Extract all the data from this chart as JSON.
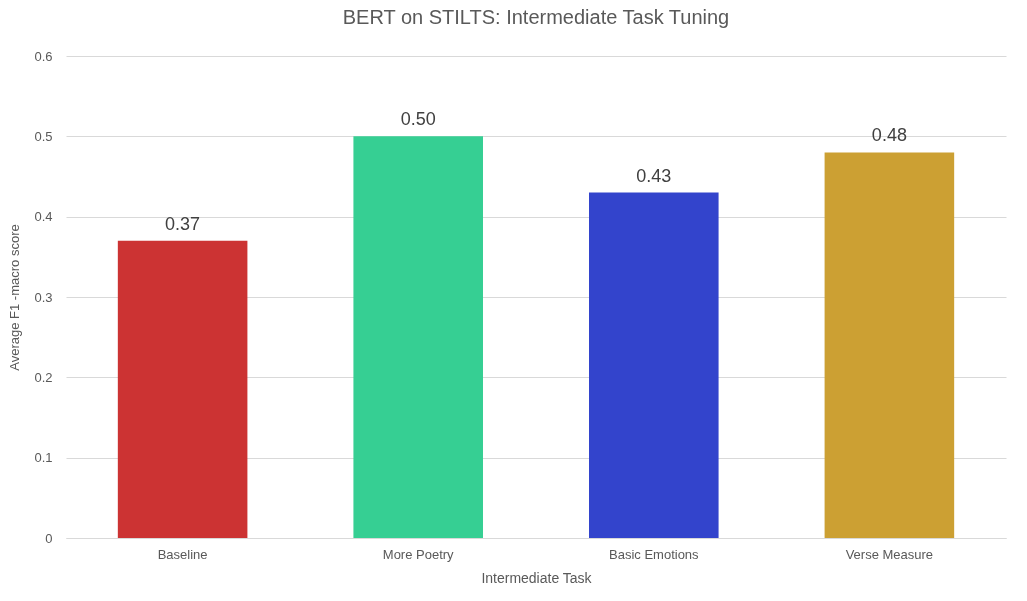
{
  "chart_data": {
    "type": "bar",
    "title": "BERT on STILTS: Intermediate Task Tuning",
    "xlabel": "Intermediate Task",
    "ylabel": "Average F1 -macro score",
    "categories": [
      "Baseline",
      "More Poetry",
      "Basic Emotions",
      "Verse Measure"
    ],
    "values": [
      0.37,
      0.5,
      0.43,
      0.48
    ],
    "colors": [
      "#cc3333",
      "#36cf93",
      "#3344cc",
      "#cca033"
    ],
    "value_labels": [
      "0.37",
      "0.50",
      "0.43",
      "0.48"
    ],
    "ylim": [
      0,
      0.6
    ],
    "yticks": [
      0,
      0.1,
      0.2,
      0.3,
      0.4,
      0.5,
      0.6
    ],
    "grid": "y",
    "legend": false
  }
}
